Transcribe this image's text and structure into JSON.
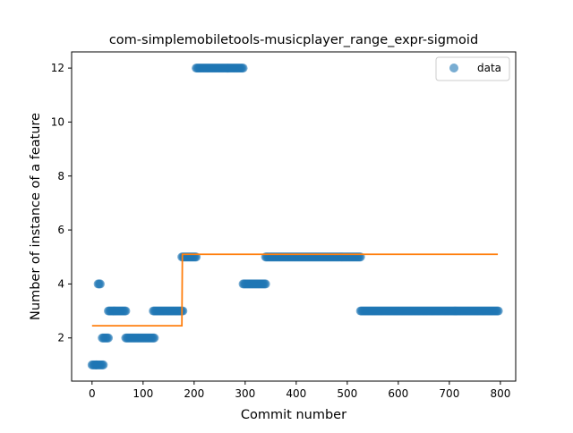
{
  "chart_data": {
    "type": "scatter",
    "title": "com-simplemobiletools-musicplayer_range_expr-sigmoid",
    "xlabel": "Commit number",
    "ylabel": "Number of instance of a feature",
    "xlim": [
      -40,
      830
    ],
    "ylim": [
      0.4,
      12.6
    ],
    "xticks": [
      0,
      100,
      200,
      300,
      400,
      500,
      600,
      700,
      800
    ],
    "yticks": [
      2,
      4,
      6,
      8,
      10,
      12
    ],
    "xtick_labels": [
      "0",
      "100",
      "200",
      "300",
      "400",
      "500",
      "600",
      "700",
      "800"
    ],
    "ytick_labels": [
      "2",
      "4",
      "6",
      "8",
      "10",
      "12"
    ],
    "grid": false,
    "legend": {
      "position": "top-right",
      "entries": [
        "data"
      ]
    },
    "colors": {
      "scatter": "#1f77b4",
      "fit": "#ff7f0e"
    },
    "scatter_segments": [
      {
        "x_start": 0,
        "x_end": 8,
        "y": 1
      },
      {
        "x_start": 8,
        "x_end": 14,
        "y": 1
      },
      {
        "x_start": 12,
        "x_end": 16,
        "y": 4
      },
      {
        "x_start": 16,
        "x_end": 22,
        "y": 1
      },
      {
        "x_start": 20,
        "x_end": 33,
        "y": 2
      },
      {
        "x_start": 32,
        "x_end": 66,
        "y": 3
      },
      {
        "x_start": 66,
        "x_end": 122,
        "y": 2
      },
      {
        "x_start": 120,
        "x_end": 178,
        "y": 3
      },
      {
        "x_start": 176,
        "x_end": 204,
        "y": 5
      },
      {
        "x_start": 204,
        "x_end": 296,
        "y": 12
      },
      {
        "x_start": 296,
        "x_end": 340,
        "y": 4
      },
      {
        "x_start": 340,
        "x_end": 526,
        "y": 5
      },
      {
        "x_start": 526,
        "x_end": 796,
        "y": 3
      }
    ],
    "fit_line": {
      "x": [
        0,
        176,
        177,
        795
      ],
      "y": [
        2.45,
        2.45,
        5.1,
        5.1
      ]
    }
  }
}
